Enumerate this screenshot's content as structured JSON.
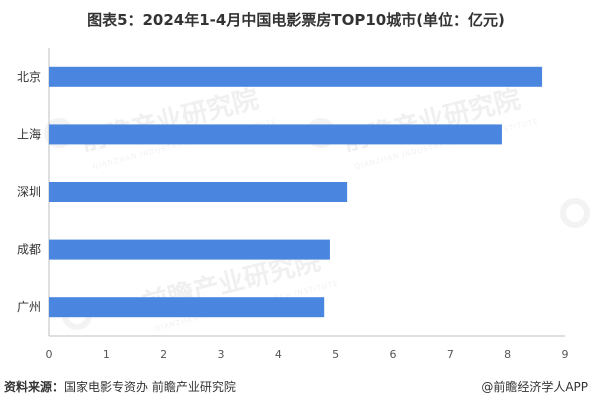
{
  "title": "图表5：2024年1-4月中国电影票房TOP10城市(单位：亿元)",
  "source": {
    "label": "资料来源：",
    "text": "国家电影专资办 前瞻产业研究院"
  },
  "brand": "@前瞻经济学人APP",
  "watermark": {
    "text": "前瞻产业研究院",
    "sub": "QIANZHAN INDUSTRY RESEARCH INSTITUTE"
  },
  "colors": {
    "bar": "#4a86e0",
    "axis": "#bfbfbf"
  },
  "chart_data": {
    "type": "bar",
    "orientation": "horizontal",
    "title": "图表5：2024年1-4月中国电影票房TOP10城市(单位：亿元)",
    "categories": [
      "北京",
      "上海",
      "深圳",
      "成都",
      "广州"
    ],
    "values": [
      8.6,
      7.9,
      5.2,
      4.9,
      4.8
    ],
    "xlim": [
      0,
      9
    ],
    "xticks": [
      "0",
      "1",
      "2",
      "3",
      "4",
      "5",
      "6",
      "7",
      "8",
      "9"
    ],
    "grid": false,
    "legend": "none"
  }
}
